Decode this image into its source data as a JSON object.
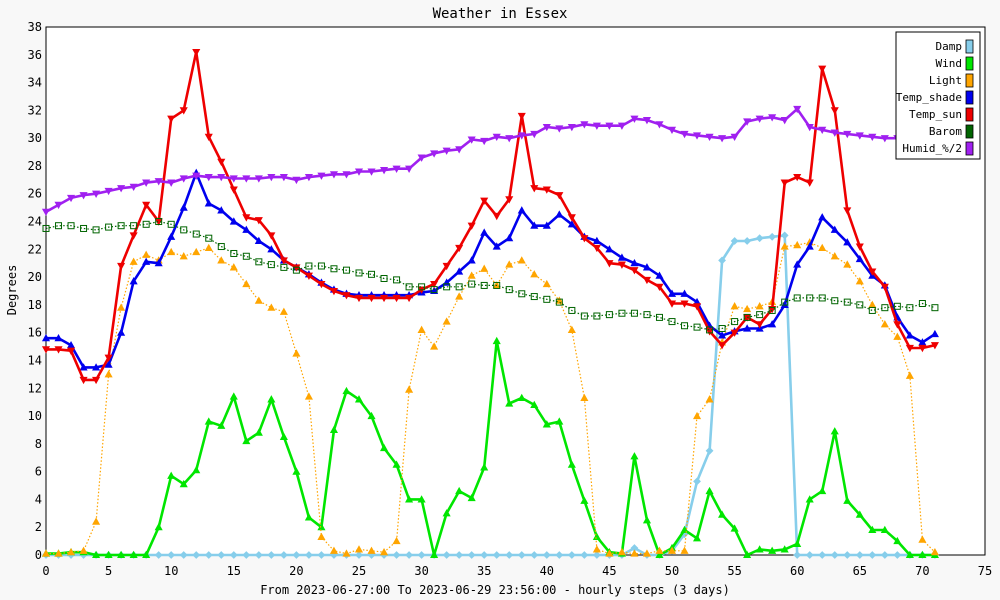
{
  "chart_data": {
    "type": "line",
    "title": "Weather in Essex",
    "xlabel": "From 2023-06-27:00 To 2023-06-29 23:56:00 - hourly steps (3 days)",
    "ylabel": "Degrees",
    "xlim": [
      0,
      75
    ],
    "ylim": [
      0,
      38
    ],
    "xticks": [
      0,
      5,
      10,
      15,
      20,
      25,
      30,
      35,
      40,
      45,
      50,
      55,
      60,
      65,
      70,
      75
    ],
    "yticks": [
      0,
      2,
      4,
      6,
      8,
      10,
      12,
      14,
      16,
      18,
      20,
      22,
      24,
      26,
      28,
      30,
      32,
      34,
      36,
      38
    ],
    "grid": true,
    "legend_position": "top-right",
    "series": [
      {
        "name": "Damp",
        "color": "#87ceeb",
        "marker": "diamond",
        "dotted": false,
        "values": [
          0,
          0,
          0,
          0,
          0,
          0,
          0,
          0,
          0,
          0,
          0,
          0,
          0,
          0,
          0,
          0,
          0,
          0,
          0,
          0,
          0,
          0,
          0,
          0,
          0,
          0,
          0,
          0,
          0,
          0,
          0,
          0,
          0,
          0,
          0,
          0,
          0,
          0,
          0,
          0,
          0,
          0,
          0,
          0,
          0,
          0,
          0,
          0.5,
          0,
          0,
          0.3,
          1.5,
          5.3,
          7.5,
          21.2,
          22.6,
          22.6,
          22.8,
          22.9,
          23,
          0,
          0,
          0,
          0,
          0,
          0,
          0,
          0,
          0,
          0,
          0,
          0
        ]
      },
      {
        "name": "Wind",
        "color": "#00e600",
        "marker": "triangle",
        "dotted": false,
        "values": [
          0.1,
          0.1,
          0.2,
          0.2,
          0,
          0,
          0,
          0,
          0,
          2,
          5.7,
          5.1,
          6.1,
          9.6,
          9.3,
          11.4,
          8.2,
          8.8,
          11.2,
          8.5,
          6,
          2.7,
          2,
          9,
          11.8,
          11.2,
          10,
          7.7,
          6.5,
          4,
          4,
          0,
          3,
          4.6,
          4.1,
          6.3,
          15.4,
          10.9,
          11.3,
          10.8,
          9.4,
          9.6,
          6.5,
          3.9,
          1.3,
          0.2,
          0.1,
          7.1,
          2.5,
          0,
          0.5,
          1.8,
          1.2,
          4.6,
          2.9,
          1.9,
          0,
          0.4,
          0.3,
          0.4,
          0.8,
          4,
          4.6,
          8.9,
          3.9,
          2.9,
          1.8,
          1.8,
          1,
          0,
          0,
          0
        ]
      },
      {
        "name": "Light",
        "color": "#ffa500",
        "marker": "triangle",
        "dotted": true,
        "values": [
          0.1,
          0.1,
          0.2,
          0.3,
          2.4,
          13,
          17.8,
          21.1,
          21.6,
          21.2,
          21.8,
          21.5,
          21.8,
          22.1,
          21.2,
          20.7,
          19.5,
          18.3,
          17.8,
          17.5,
          14.5,
          11.4,
          1.3,
          0.3,
          0.1,
          0.4,
          0.3,
          0.2,
          1,
          11.9,
          16.2,
          15,
          16.8,
          18.6,
          20.1,
          20.6,
          19.4,
          20.9,
          21.2,
          20.2,
          19.5,
          18.3,
          16.2,
          11.3,
          0.4,
          0.1,
          0.2,
          0.1,
          0.1,
          0.3,
          0.3,
          0.3,
          10,
          11.2,
          15.3,
          17.9,
          17.7,
          17.9,
          18.2,
          22.2,
          22.3,
          22.5,
          22.1,
          21.5,
          20.9,
          19.7,
          18,
          16.6,
          15.7,
          12.9,
          1.1,
          0.2
        ]
      },
      {
        "name": "Temp_shade",
        "color": "#0000ee",
        "marker": "triangle",
        "dotted": false,
        "values": [
          15.6,
          15.6,
          15.1,
          13.5,
          13.5,
          13.7,
          16,
          19.7,
          21.1,
          21,
          22.9,
          25,
          27.5,
          25.3,
          24.8,
          24,
          23.4,
          22.6,
          22,
          21.2,
          20.7,
          20.2,
          19.6,
          19.1,
          18.8,
          18.7,
          18.7,
          18.7,
          18.7,
          18.7,
          18.9,
          19,
          19.6,
          20.4,
          21.2,
          23.2,
          22.2,
          22.8,
          24.8,
          23.7,
          23.7,
          24.5,
          23.8,
          22.9,
          22.6,
          22,
          21.4,
          21,
          20.7,
          20.1,
          18.8,
          18.8,
          18.2,
          16.5,
          15.8,
          16.1,
          16.3,
          16.3,
          16.6,
          18,
          20.9,
          22.2,
          24.3,
          23.4,
          22.5,
          21.3,
          20.1,
          19.4,
          17.1,
          15.8,
          15.3,
          15.9
        ]
      },
      {
        "name": "Temp_sun",
        "color": "#ee0000",
        "marker": "triangle-down",
        "dotted": false,
        "values": [
          14.8,
          14.8,
          14.7,
          12.6,
          12.6,
          14.2,
          20.8,
          23,
          25.2,
          24,
          31.4,
          32,
          36.2,
          30.1,
          28.3,
          26.3,
          24.3,
          24.1,
          23,
          21.2,
          20.7,
          20.1,
          19.5,
          19,
          18.7,
          18.5,
          18.5,
          18.5,
          18.5,
          18.5,
          19.1,
          19.5,
          20.8,
          22.1,
          23.7,
          25.5,
          24.4,
          25.6,
          31.6,
          26.4,
          26.3,
          25.9,
          24.3,
          22.8,
          22.1,
          21,
          20.9,
          20.5,
          19.8,
          19.3,
          18.1,
          18.1,
          17.9,
          16.1,
          15.1,
          16,
          17.1,
          16.6,
          17.7,
          26.8,
          27.2,
          26.8,
          35,
          32,
          24.8,
          22.2,
          20.4,
          19.3,
          16.6,
          14.9,
          14.9,
          15.1
        ]
      },
      {
        "name": "Barom",
        "color": "#006400",
        "marker": "square",
        "dotted": true,
        "values": [
          23.5,
          23.7,
          23.7,
          23.5,
          23.4,
          23.6,
          23.7,
          23.7,
          23.8,
          24,
          23.8,
          23.4,
          23.1,
          22.8,
          22.2,
          21.7,
          21.5,
          21.1,
          20.9,
          20.7,
          20.5,
          20.8,
          20.8,
          20.6,
          20.5,
          20.3,
          20.2,
          19.9,
          19.8,
          19.3,
          19.3,
          19.1,
          19.3,
          19.3,
          19.5,
          19.4,
          19.4,
          19.1,
          18.8,
          18.6,
          18.4,
          18.2,
          17.6,
          17.2,
          17.2,
          17.3,
          17.4,
          17.4,
          17.3,
          17.1,
          16.8,
          16.5,
          16.4,
          16.2,
          16.3,
          16.8,
          17.1,
          17.3,
          17.6,
          18.2,
          18.5,
          18.5,
          18.5,
          18.3,
          18.2,
          18,
          17.6,
          17.8,
          17.9,
          17.8,
          18.1,
          17.8
        ]
      },
      {
        "name": "Humid_%/2",
        "color": "#a020f0",
        "marker": "triangle-down",
        "dotted": false,
        "values": [
          24.7,
          25.2,
          25.7,
          25.9,
          26,
          26.2,
          26.4,
          26.5,
          26.8,
          26.9,
          26.8,
          27.1,
          27.3,
          27.2,
          27.2,
          27.1,
          27.1,
          27.1,
          27.2,
          27.2,
          27,
          27.2,
          27.3,
          27.4,
          27.4,
          27.6,
          27.6,
          27.7,
          27.8,
          27.8,
          28.6,
          28.9,
          29.1,
          29.2,
          29.9,
          29.8,
          30.1,
          30,
          30.2,
          30.3,
          30.8,
          30.7,
          30.8,
          31,
          30.9,
          30.9,
          30.9,
          31.4,
          31.3,
          31,
          30.6,
          30.3,
          30.2,
          30.1,
          30,
          30.1,
          31.2,
          31.4,
          31.5,
          31.3,
          32.1,
          30.8,
          30.6,
          30.4,
          30.3,
          30.2,
          30.1,
          30,
          30,
          30,
          30,
          30
        ]
      }
    ]
  }
}
